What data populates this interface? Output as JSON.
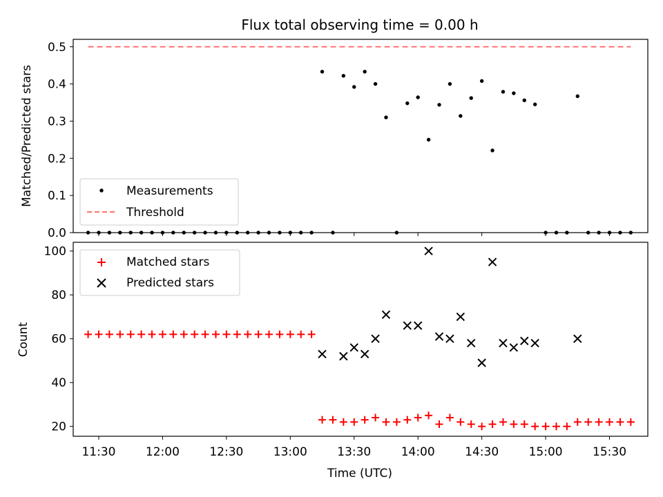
{
  "chart_data": [
    {
      "type": "scatter",
      "title": "Flux total observing time = 0.00 h",
      "xlabel": "",
      "ylabel": "Matched/Predicted stars",
      "ylim": [
        0,
        0.52
      ],
      "y_ticks": [
        "0.0",
        "0.1",
        "0.2",
        "0.3",
        "0.4",
        "0.5"
      ],
      "legend": {
        "placement": "lower-left",
        "entries": [
          "Measurements",
          "Threshold"
        ]
      },
      "series": [
        {
          "name": "Measurements",
          "marker": "dot",
          "color": "#000000",
          "points": [
            [
              "11:25",
              0
            ],
            [
              "11:30",
              0
            ],
            [
              "11:35",
              0
            ],
            [
              "11:40",
              0
            ],
            [
              "11:45",
              0
            ],
            [
              "11:50",
              0
            ],
            [
              "11:55",
              0
            ],
            [
              "12:00",
              0
            ],
            [
              "12:05",
              0
            ],
            [
              "12:10",
              0
            ],
            [
              "12:15",
              0
            ],
            [
              "12:20",
              0
            ],
            [
              "12:25",
              0
            ],
            [
              "12:30",
              0
            ],
            [
              "12:35",
              0
            ],
            [
              "12:40",
              0
            ],
            [
              "12:45",
              0
            ],
            [
              "12:50",
              0
            ],
            [
              "12:55",
              0
            ],
            [
              "13:00",
              0
            ],
            [
              "13:05",
              0
            ],
            [
              "13:10",
              0
            ],
            [
              "13:15",
              0.433
            ],
            [
              "13:20",
              0
            ],
            [
              "13:25",
              0.422
            ],
            [
              "13:30",
              0.392
            ],
            [
              "13:35",
              0.433
            ],
            [
              "13:40",
              0.4
            ],
            [
              "13:45",
              0.31
            ],
            [
              "13:50",
              0
            ],
            [
              "13:55",
              0.348
            ],
            [
              "14:00",
              0.364
            ],
            [
              "14:05",
              0.25
            ],
            [
              "14:10",
              0.344
            ],
            [
              "14:15",
              0.4
            ],
            [
              "14:20",
              0.314
            ],
            [
              "14:25",
              0.362
            ],
            [
              "14:30",
              0.408
            ],
            [
              "14:35",
              0.221
            ],
            [
              "14:40",
              0.379
            ],
            [
              "14:45",
              0.375
            ],
            [
              "14:50",
              0.356
            ],
            [
              "14:55",
              0.345
            ],
            [
              "15:00",
              0
            ],
            [
              "15:05",
              0
            ],
            [
              "15:10",
              0
            ],
            [
              "15:15",
              0.367
            ],
            [
              "15:20",
              0
            ],
            [
              "15:25",
              0
            ],
            [
              "15:30",
              0
            ],
            [
              "15:35",
              0
            ],
            [
              "15:40",
              0
            ]
          ]
        },
        {
          "name": "Threshold",
          "style": "dashed",
          "color": "#ff7070",
          "points": [
            [
              "11:25",
              0.5
            ],
            [
              "15:40",
              0.5
            ]
          ]
        }
      ]
    },
    {
      "type": "scatter",
      "title": "",
      "xlabel": "Time (UTC)",
      "ylabel": "Count",
      "xlim": [
        "11:18",
        "15:48"
      ],
      "ylim": [
        15.5,
        104
      ],
      "x_ticks": [
        "11:30",
        "12:00",
        "12:30",
        "13:00",
        "13:30",
        "14:00",
        "14:30",
        "15:00",
        "15:30"
      ],
      "y_ticks": [
        "20",
        "40",
        "60",
        "80",
        "100"
      ],
      "legend": {
        "placement": "upper-left",
        "entries": [
          "Matched stars",
          "Predicted stars"
        ]
      },
      "series": [
        {
          "name": "Matched stars",
          "marker": "plus",
          "color": "#ff0000",
          "points": [
            [
              "11:25",
              62
            ],
            [
              "11:30",
              62
            ],
            [
              "11:35",
              62
            ],
            [
              "11:40",
              62
            ],
            [
              "11:45",
              62
            ],
            [
              "11:50",
              62
            ],
            [
              "11:55",
              62
            ],
            [
              "12:00",
              62
            ],
            [
              "12:05",
              62
            ],
            [
              "12:10",
              62
            ],
            [
              "12:15",
              62
            ],
            [
              "12:20",
              62
            ],
            [
              "12:25",
              62
            ],
            [
              "12:30",
              62
            ],
            [
              "12:35",
              62
            ],
            [
              "12:40",
              62
            ],
            [
              "12:45",
              62
            ],
            [
              "12:50",
              62
            ],
            [
              "12:55",
              62
            ],
            [
              "13:00",
              62
            ],
            [
              "13:05",
              62
            ],
            [
              "13:10",
              62
            ],
            [
              "13:15",
              23
            ],
            [
              "13:20",
              23
            ],
            [
              "13:25",
              22
            ],
            [
              "13:30",
              22
            ],
            [
              "13:35",
              23
            ],
            [
              "13:40",
              24
            ],
            [
              "13:45",
              22
            ],
            [
              "13:50",
              22
            ],
            [
              "13:55",
              23
            ],
            [
              "14:00",
              24
            ],
            [
              "14:05",
              25
            ],
            [
              "14:10",
              21
            ],
            [
              "14:15",
              24
            ],
            [
              "14:20",
              22
            ],
            [
              "14:25",
              21
            ],
            [
              "14:30",
              20
            ],
            [
              "14:35",
              21
            ],
            [
              "14:40",
              22
            ],
            [
              "14:45",
              21
            ],
            [
              "14:50",
              21
            ],
            [
              "14:55",
              20
            ],
            [
              "15:00",
              20
            ],
            [
              "15:05",
              20
            ],
            [
              "15:10",
              20
            ],
            [
              "15:15",
              22
            ],
            [
              "15:20",
              22
            ],
            [
              "15:25",
              22
            ],
            [
              "15:30",
              22
            ],
            [
              "15:35",
              22
            ],
            [
              "15:40",
              22
            ]
          ]
        },
        {
          "name": "Predicted stars",
          "marker": "x",
          "color": "#000000",
          "points": [
            [
              "13:15",
              53
            ],
            [
              "13:25",
              52
            ],
            [
              "13:30",
              56
            ],
            [
              "13:35",
              53
            ],
            [
              "13:40",
              60
            ],
            [
              "13:45",
              71
            ],
            [
              "13:55",
              66
            ],
            [
              "14:00",
              66
            ],
            [
              "14:05",
              100
            ],
            [
              "14:10",
              61
            ],
            [
              "14:15",
              60
            ],
            [
              "14:20",
              70
            ],
            [
              "14:25",
              58
            ],
            [
              "14:30",
              49
            ],
            [
              "14:35",
              95
            ],
            [
              "14:40",
              58
            ],
            [
              "14:45",
              56
            ],
            [
              "14:50",
              59
            ],
            [
              "14:55",
              58
            ],
            [
              "15:15",
              60
            ]
          ]
        }
      ]
    }
  ]
}
